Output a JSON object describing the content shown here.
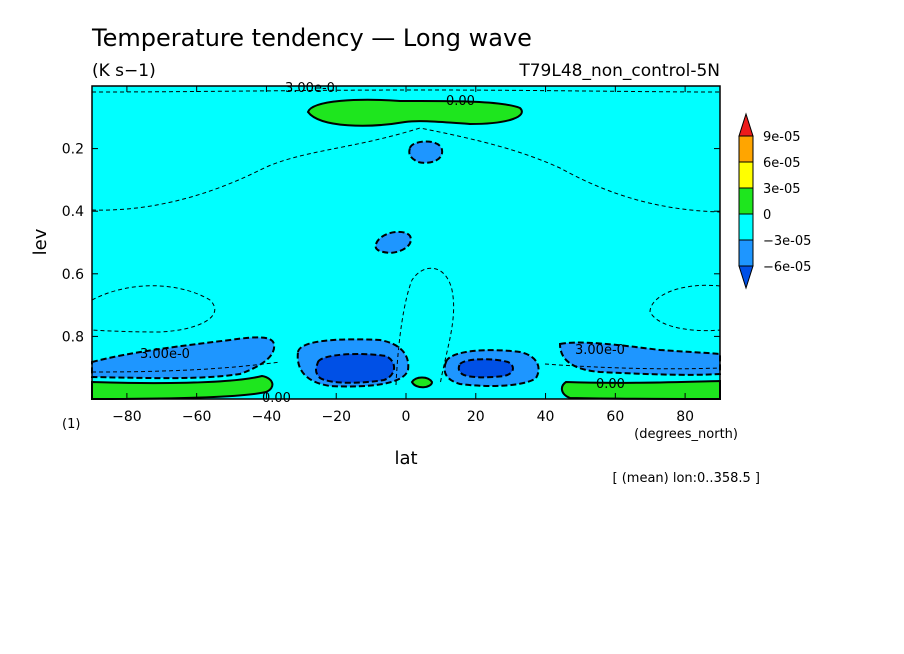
{
  "chart_data": {
    "type": "contour",
    "title": "Temperature tendency — Long wave",
    "units": "(K s−1)",
    "experiment": "T79L48_non_control-5N",
    "xlabel": "lat",
    "xunits": "(degrees_north)",
    "ylabel": "lev",
    "yunits": "(1)",
    "footer": "[ (mean) lon:0..358.5 ]",
    "xlim": [
      -90,
      90
    ],
    "ylim": [
      0.0,
      1.0
    ],
    "y_inverted": true,
    "xticks": [
      -80,
      -60,
      -40,
      -20,
      0,
      20,
      40,
      60,
      80
    ],
    "yticks": [
      0.2,
      0.4,
      0.6,
      0.8
    ],
    "colorbar": {
      "labels": [
        "9e-05",
        "6e-05",
        "3e-05",
        "0",
        "−3e-05",
        "−6e-05"
      ],
      "colors": [
        "#ee1c1c",
        "#ffa500",
        "#ffff00",
        "#1ee61e",
        "#00ffff",
        "#1e96ff",
        "#0050e6"
      ]
    },
    "contour_labels": [
      "3.00e-0",
      "0.00",
      "3.00e-0",
      "0.00",
      "0.00",
      "3.00e-0"
    ]
  }
}
